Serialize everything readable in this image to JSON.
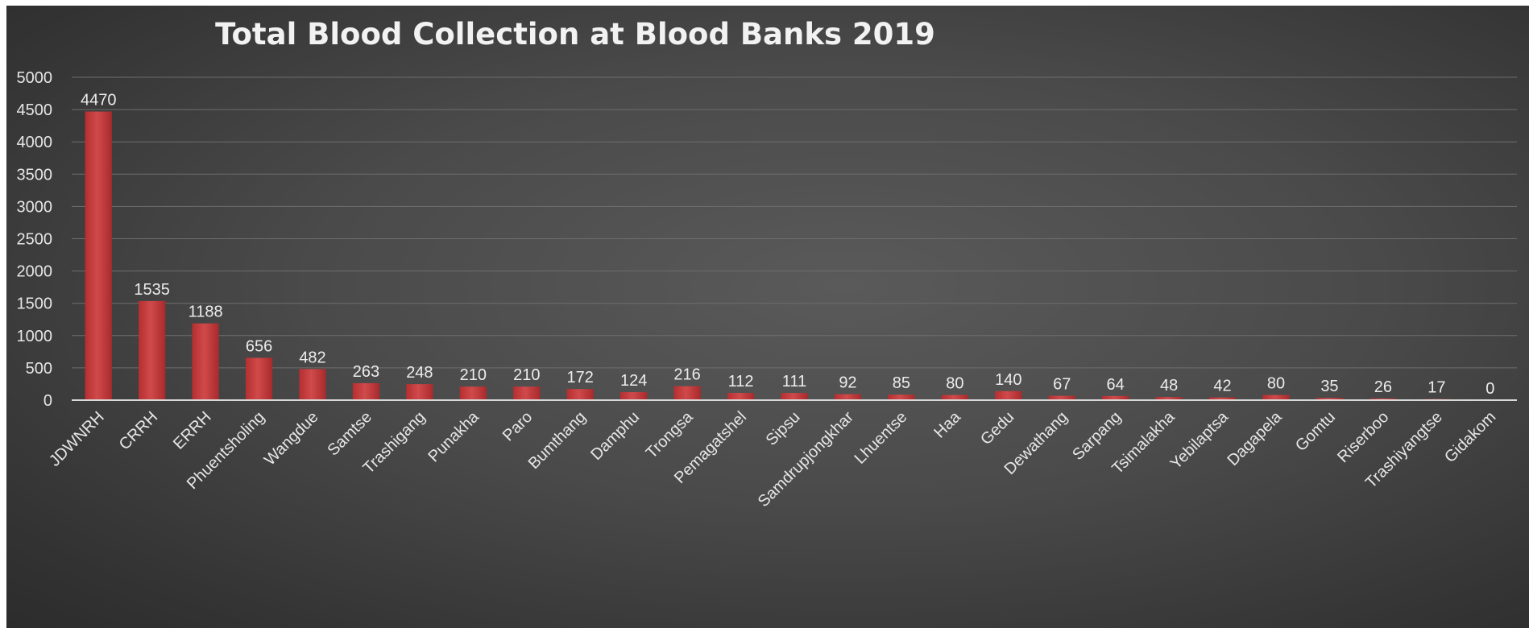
{
  "chart_data": {
    "type": "bar",
    "title": "Total Blood Collection at Blood Banks 2019",
    "xlabel": "",
    "ylabel": "",
    "ylim": [
      0,
      5000
    ],
    "yticks": [
      "0",
      "500",
      "1000",
      "1500",
      "2000",
      "2500",
      "3000",
      "3500",
      "4000",
      "4500",
      "5000"
    ],
    "grid": true,
    "legend": "none",
    "bar_color": "#c0393b",
    "categories": [
      "JDWNRH",
      "CRRH",
      "ERRH",
      "Phuentsholing",
      "Wangdue",
      "Samtse",
      "Trashigang",
      "Punakha",
      "Paro",
      "Bumthang",
      "Damphu",
      "Trongsa",
      "Pemagatshel",
      "Sipsu",
      "Samdrupjongkhar",
      "Lhuentse",
      "Haa",
      "Gedu",
      "Dewathang",
      "Sarpang",
      "Tsimalakha",
      "Yebilaptsa",
      "Dagapela",
      "Gomtu",
      "Riserboo",
      "Trashiyangtse",
      "Gidakom"
    ],
    "values": [
      4470,
      1535,
      1188,
      656,
      482,
      263,
      248,
      210,
      210,
      172,
      124,
      216,
      112,
      111,
      92,
      85,
      80,
      140,
      67,
      64,
      48,
      42,
      80,
      35,
      26,
      17,
      0
    ]
  }
}
